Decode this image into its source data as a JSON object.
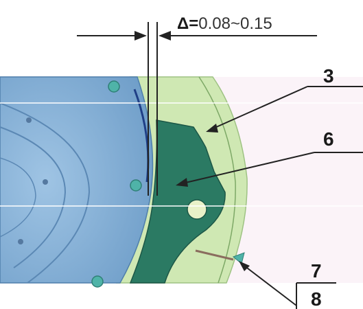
{
  "clearance": {
    "symbol": "Δ=",
    "value": "0.08~0.15"
  },
  "callouts": [
    {
      "id": "3",
      "text": "3"
    },
    {
      "id": "6",
      "text": "6"
    },
    {
      "id": "7",
      "text": "7"
    },
    {
      "id": "8",
      "text": "8"
    }
  ],
  "colors": {
    "disc_blue": "#8db5d8",
    "disc_blue_dark": "#6f9cc6",
    "ring_green": "#cfe8b3",
    "pad_green": "#2b7a63",
    "background": "#fbf3f8",
    "screw_teal": "#4fb3a8"
  }
}
